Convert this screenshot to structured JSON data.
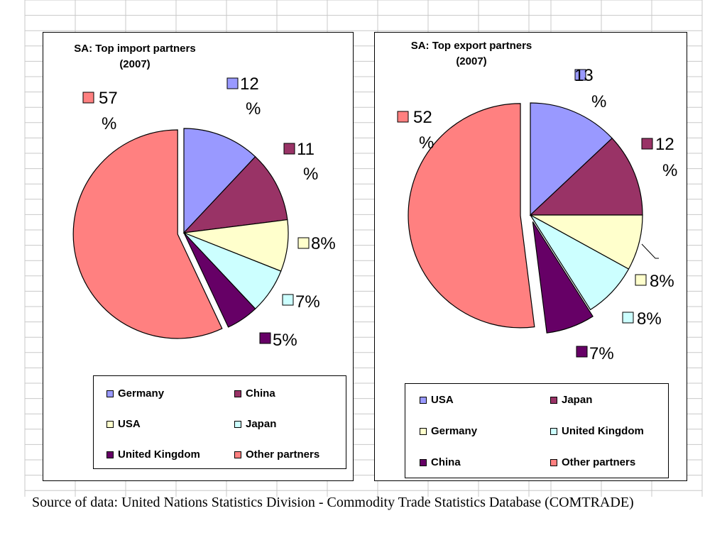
{
  "chart_data": [
    {
      "type": "pie",
      "title": "SA: Top import partners",
      "subtitle": "(2007)",
      "categories": [
        "Germany",
        "China",
        "USA",
        "Japan",
        "United Kingdom",
        "Other partners"
      ],
      "values": [
        12,
        11,
        8,
        7,
        5,
        57
      ],
      "data_labels": [
        "12 %",
        "11 %",
        "8%",
        "7%",
        "5%",
        "57 %"
      ],
      "colors": [
        "#9999ff",
        "#993366",
        "#ffffcc",
        "#ccffff",
        "#660066",
        "#ff8080"
      ],
      "legend_position": "bottom",
      "exploded": true
    },
    {
      "type": "pie",
      "title": "SA: Top export partners",
      "subtitle": "(2007)",
      "categories": [
        "USA",
        "Japan",
        "Germany",
        "United Kingdom",
        "China",
        "Other partners"
      ],
      "values": [
        13,
        12,
        8,
        8,
        7,
        52
      ],
      "data_labels": [
        "13 %",
        "12 %",
        "8%",
        "8%",
        "7%",
        "52 %"
      ],
      "colors": [
        "#9999ff",
        "#993366",
        "#ffffcc",
        "#ccffff",
        "#660066",
        "#ff8080"
      ],
      "legend_position": "bottom",
      "exploded": true
    }
  ],
  "source": "Source of data: United Nations Statistics Division - Commodity Trade Statistics Database (COMTRADE)"
}
